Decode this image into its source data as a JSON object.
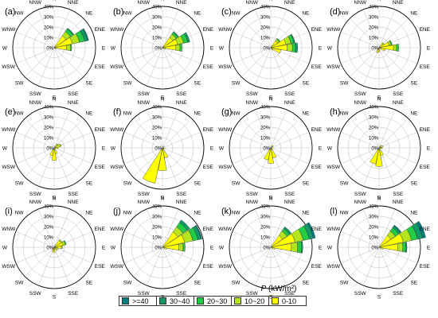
{
  "chart_data": {
    "type": "polar-bar-stacked",
    "directions": [
      "N",
      "NNE",
      "NE",
      "ENE",
      "E",
      "ESE",
      "SE",
      "SSE",
      "S",
      "SSW",
      "SW",
      "WSW",
      "W",
      "WNW",
      "NW",
      "NNW"
    ],
    "radial_ticks": [
      "0%",
      "10%",
      "20%",
      "30%",
      "40%"
    ],
    "rmax": 40,
    "legend": {
      "title_symbol": "P",
      "title_unit": "(kW/m²)",
      "classes": [
        ">=40",
        "30~40",
        "20~30",
        "10~20",
        "0-10"
      ]
    },
    "class_colors": [
      "#ffff00",
      "#b5e61d",
      "#22cc44",
      "#119966",
      "#007f7f"
    ],
    "panels": [
      {
        "label": "(a)",
        "petals": [
          {
            "dir": "NE",
            "values": [
              14,
              5,
              3,
              1,
              0
            ]
          },
          {
            "dir": "ENE",
            "values": [
              18,
              7,
              5,
              3,
              1
            ]
          },
          {
            "dir": "E",
            "values": [
              12,
              4,
              1,
              0,
              0
            ]
          },
          {
            "dir": "ESE",
            "values": [
              2,
              0,
              0,
              0,
              0
            ]
          }
        ]
      },
      {
        "label": "(b)",
        "petals": [
          {
            "dir": "NE",
            "values": [
              12,
              4,
              2,
              1,
              0
            ]
          },
          {
            "dir": "ENE",
            "values": [
              15,
              6,
              4,
              2,
              0
            ]
          },
          {
            "dir": "E",
            "values": [
              13,
              4,
              2,
              0,
              0
            ]
          },
          {
            "dir": "ESE",
            "values": [
              3,
              0,
              0,
              0,
              0
            ]
          }
        ]
      },
      {
        "label": "(c)",
        "petals": [
          {
            "dir": "NE",
            "values": [
              8,
              2,
              1,
              0,
              0
            ]
          },
          {
            "dir": "ENE",
            "values": [
              15,
              5,
              3,
              1,
              0
            ]
          },
          {
            "dir": "E",
            "values": [
              16,
              5,
              3,
              2,
              0
            ]
          },
          {
            "dir": "ESE",
            "values": [
              10,
              0,
              0,
              0,
              0
            ]
          },
          {
            "dir": "SE",
            "values": [
              3,
              0,
              0,
              0,
              0
            ]
          }
        ]
      },
      {
        "label": "(d)",
        "petals": [
          {
            "dir": "NE",
            "values": [
              5,
              1,
              0,
              0,
              0
            ]
          },
          {
            "dir": "ENE",
            "values": [
              10,
              2,
              1,
              0,
              0
            ]
          },
          {
            "dir": "E",
            "values": [
              14,
              3,
              2,
              0,
              0
            ]
          },
          {
            "dir": "ESE",
            "values": [
              6,
              0,
              0,
              0,
              0
            ]
          },
          {
            "dir": "S",
            "values": [
              4,
              0,
              0,
              0,
              0
            ]
          },
          {
            "dir": "SSW",
            "values": [
              5,
              0,
              0,
              0,
              0
            ]
          }
        ]
      },
      {
        "label": "(e)",
        "petals": [
          {
            "dir": "NE",
            "values": [
              4,
              1,
              0,
              0,
              0
            ]
          },
          {
            "dir": "ENE",
            "values": [
              6,
              1,
              0,
              0,
              0
            ]
          },
          {
            "dir": "E",
            "values": [
              4,
              0,
              0,
              0,
              0
            ]
          },
          {
            "dir": "SSE",
            "values": [
              6,
              0,
              0,
              0,
              0
            ]
          },
          {
            "dir": "S",
            "values": [
              12,
              0,
              0,
              0,
              0
            ]
          },
          {
            "dir": "SSW",
            "values": [
              8,
              0,
              0,
              0,
              0
            ]
          }
        ]
      },
      {
        "label": "(f)",
        "petals": [
          {
            "dir": "NE",
            "values": [
              2,
              0,
              0,
              0,
              0
            ]
          },
          {
            "dir": "ESE",
            "values": [
              2,
              0,
              0,
              0,
              0
            ]
          },
          {
            "dir": "SSE",
            "values": [
              10,
              0,
              0,
              0,
              0
            ]
          },
          {
            "dir": "S",
            "values": [
              22,
              0,
              0,
              0,
              0
            ]
          },
          {
            "dir": "SSW",
            "values": [
              35,
              0,
              0,
              0,
              0
            ]
          }
        ]
      },
      {
        "label": "(g)",
        "petals": [
          {
            "dir": "NE",
            "values": [
              3,
              0,
              0,
              0,
              0
            ]
          },
          {
            "dir": "ENE",
            "values": [
              2,
              0,
              0,
              0,
              0
            ]
          },
          {
            "dir": "SE",
            "values": [
              2,
              0,
              0,
              0,
              0
            ]
          },
          {
            "dir": "SSE",
            "values": [
              10,
              0,
              0,
              0,
              0
            ]
          },
          {
            "dir": "S",
            "values": [
              15,
              0,
              0,
              0,
              0
            ]
          },
          {
            "dir": "SSW",
            "values": [
              12,
              0,
              0,
              0,
              0
            ]
          }
        ]
      },
      {
        "label": "(h)",
        "petals": [
          {
            "dir": "NE",
            "values": [
              3,
              0,
              0,
              0,
              0
            ]
          },
          {
            "dir": "ENE",
            "values": [
              4,
              0,
              0,
              0,
              0
            ]
          },
          {
            "dir": "E",
            "values": [
              3,
              0,
              0,
              0,
              0
            ]
          },
          {
            "dir": "SSE",
            "values": [
              8,
              0,
              0,
              0,
              0
            ]
          },
          {
            "dir": "S",
            "values": [
              18,
              0,
              0,
              0,
              0
            ]
          },
          {
            "dir": "SSW",
            "values": [
              16,
              0,
              0,
              0,
              0
            ]
          }
        ]
      },
      {
        "label": "(i)",
        "petals": [
          {
            "dir": "NE",
            "values": [
              8,
              1,
              0,
              0,
              0
            ]
          },
          {
            "dir": "ENE",
            "values": [
              9,
              2,
              1,
              0,
              0
            ]
          },
          {
            "dir": "E",
            "values": [
              7,
              1,
              0,
              0,
              0
            ]
          },
          {
            "dir": "ESE",
            "values": [
              4,
              0,
              0,
              0,
              0
            ]
          },
          {
            "dir": "SE",
            "values": [
              4,
              0,
              0,
              0,
              0
            ]
          },
          {
            "dir": "S",
            "values": [
              5,
              0,
              0,
              0,
              0
            ]
          },
          {
            "dir": "SSW",
            "values": [
              4,
              0,
              0,
              0,
              0
            ]
          }
        ]
      },
      {
        "label": "(j)",
        "petals": [
          {
            "dir": "NE",
            "values": [
              18,
              6,
              5,
              3,
              0
            ]
          },
          {
            "dir": "ENE",
            "values": [
              22,
              8,
              5,
              3,
              1
            ]
          },
          {
            "dir": "E",
            "values": [
              16,
              4,
              2,
              0,
              0
            ]
          },
          {
            "dir": "ESE",
            "values": [
              4,
              0,
              0,
              0,
              0
            ]
          }
        ]
      },
      {
        "label": "(k)",
        "petals": [
          {
            "dir": "NE",
            "values": [
              14,
              5,
              3,
              2,
              0
            ]
          },
          {
            "dir": "ENE",
            "values": [
              24,
              8,
              6,
              4,
              2
            ]
          },
          {
            "dir": "E",
            "values": [
              20,
              6,
              4,
              1,
              0
            ]
          },
          {
            "dir": "ESE",
            "values": [
              4,
              0,
              0,
              0,
              0
            ]
          }
        ]
      },
      {
        "label": "(l)",
        "petals": [
          {
            "dir": "NE",
            "values": [
              14,
              5,
              4,
              2,
              1
            ]
          },
          {
            "dir": "ENE",
            "values": [
              24,
              8,
              6,
              5,
              3
            ]
          },
          {
            "dir": "E",
            "values": [
              18,
              5,
              3,
              1,
              0
            ]
          },
          {
            "dir": "ESE",
            "values": [
              4,
              0,
              0,
              0,
              0
            ]
          }
        ]
      }
    ]
  }
}
